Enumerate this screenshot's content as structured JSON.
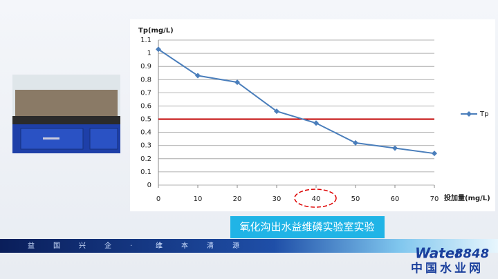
{
  "chart_data": {
    "type": "line",
    "y_label": "Tp(mg/L)",
    "x_label": "投加量(mg/L)",
    "x": [
      0,
      10,
      20,
      30,
      40,
      50,
      60,
      70
    ],
    "series": [
      {
        "name": "Tp",
        "color": "#4a7ebb",
        "values": [
          1.03,
          0.83,
          0.78,
          0.56,
          0.47,
          0.32,
          0.28,
          0.24
        ]
      }
    ],
    "xlim": [
      0,
      70
    ],
    "xticks": [
      0,
      10,
      20,
      30,
      40,
      50,
      60,
      70
    ],
    "ylim": [
      0,
      1.1
    ],
    "yticks": [
      0,
      0.1,
      0.2,
      0.3,
      0.4,
      0.5,
      0.6,
      0.7,
      0.8,
      0.9,
      1,
      1.1
    ],
    "grid": true,
    "legend": "right",
    "reference_line": {
      "value": 0.5,
      "color": "#c00000"
    }
  },
  "caption": "氧化沟出水益维磷实验室实验",
  "banner": [
    "益",
    "国",
    "兴",
    "企",
    "·",
    "维",
    "本",
    "清",
    "源"
  ],
  "logo": {
    "word": "Water",
    "number": "8848",
    "site": "中国水业网"
  }
}
